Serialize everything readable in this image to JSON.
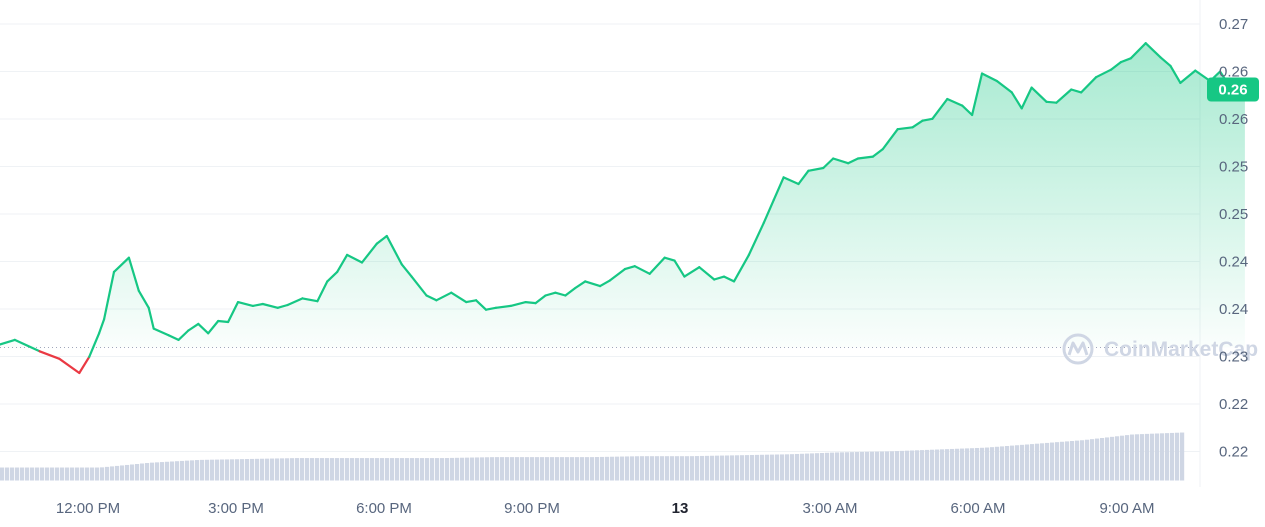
{
  "chart_data": {
    "type": "line",
    "colors": {
      "up": "#16c784",
      "down": "#ea3943",
      "area": "#16c784",
      "volume": "#cfd6e4",
      "badge": "#16c784",
      "grid": "#eff2f5",
      "baseline": "#a1a7bb",
      "watermark": "#cfd6e4"
    },
    "watermark": "CoinMarketCap",
    "x_ticks": [
      "12:00 PM",
      "3:00 PM",
      "6:00 PM",
      "9:00 PM",
      "13",
      "3:00 AM",
      "6:00 AM",
      "9:00 AM"
    ],
    "x_ticks_bold": [
      "13"
    ],
    "y_ticks": [
      "0.27",
      "0.26",
      "0.26",
      "0.25",
      "0.25",
      "0.24",
      "0.24",
      "0.23",
      "0.22",
      "0.22"
    ],
    "ylim": [
      0.2185,
      0.2715
    ],
    "baseline_value": 0.233,
    "current_value_label": "0.26",
    "current_value": 0.2603,
    "x_hours": [
      10.0,
      10.5,
      11.0,
      11.4,
      11.8,
      12.0,
      12.2,
      12.3,
      12.5,
      12.8,
      13.0,
      13.2,
      13.3,
      13.6,
      13.8,
      14.0,
      14.2,
      14.4,
      14.6,
      14.8,
      15.0,
      15.3,
      15.5,
      15.8,
      16.0,
      16.3,
      16.6,
      16.8,
      17.0,
      17.2,
      17.5,
      17.8,
      18.0,
      18.3,
      18.5,
      18.8,
      19.0,
      19.3,
      19.6,
      19.8,
      20.0,
      20.2,
      20.5,
      20.8,
      21.0,
      21.2,
      21.4,
      21.6,
      21.8,
      22.0,
      22.3,
      22.5,
      22.8,
      23.0,
      23.3,
      23.6,
      23.8,
      24.0,
      24.3,
      24.6,
      24.8,
      25.0,
      25.3,
      25.6,
      25.8,
      26.0,
      26.3,
      26.5,
      26.8,
      27.0,
      27.3,
      27.5,
      27.8,
      28.0,
      28.3,
      28.6,
      28.8,
      29.0,
      29.3,
      29.6,
      29.8,
      30.0,
      30.3,
      30.6,
      30.8,
      31.0,
      31.3,
      31.5,
      31.8,
      32.0,
      32.3,
      32.6,
      32.8,
      33.0,
      33.3,
      33.6,
      33.8,
      34.0,
      34.3,
      34.6,
      34.8,
      35.0,
      35.3
    ],
    "values": [
      0.233,
      0.2338,
      0.2326,
      0.2318,
      0.2303,
      0.232,
      0.2345,
      0.236,
      0.241,
      0.2425,
      0.239,
      0.2372,
      0.235,
      0.2343,
      0.2338,
      0.2348,
      0.2355,
      0.2345,
      0.2358,
      0.2357,
      0.2378,
      0.2374,
      0.2376,
      0.2372,
      0.2375,
      0.2382,
      0.2379,
      0.24,
      0.241,
      0.2428,
      0.242,
      0.244,
      0.2448,
      0.2418,
      0.2405,
      0.2385,
      0.238,
      0.2388,
      0.2378,
      0.238,
      0.237,
      0.2372,
      0.2374,
      0.2378,
      0.2377,
      0.2385,
      0.2388,
      0.2385,
      0.2393,
      0.24,
      0.2395,
      0.2401,
      0.2413,
      0.2416,
      0.2408,
      0.2425,
      0.2422,
      0.2405,
      0.2415,
      0.2402,
      0.2405,
      0.24,
      0.2428,
      0.2462,
      0.2486,
      0.251,
      0.2503,
      0.2517,
      0.252,
      0.253,
      0.2525,
      0.253,
      0.2532,
      0.254,
      0.2561,
      0.2563,
      0.257,
      0.2572,
      0.2593,
      0.2586,
      0.2576,
      0.262,
      0.2612,
      0.26,
      0.2583,
      0.2605,
      0.259,
      0.2589,
      0.2603,
      0.26,
      0.2616,
      0.2624,
      0.2632,
      0.2636,
      0.2652,
      0.2637,
      0.2628,
      0.261,
      0.2623,
      0.2612,
      0.2622,
      0.2606,
      0.2603
    ],
    "volume_base": 0.2203,
    "volume_values": [
      0.2203,
      0.2203,
      0.2203,
      0.2208,
      0.2211,
      0.2212,
      0.2213,
      0.2213,
      0.2213,
      0.2213,
      0.2214,
      0.2214,
      0.2214,
      0.2215,
      0.2215,
      0.2216,
      0.2217,
      0.2219,
      0.222,
      0.2222,
      0.2224,
      0.2228,
      0.2232,
      0.2238,
      0.224
    ]
  }
}
